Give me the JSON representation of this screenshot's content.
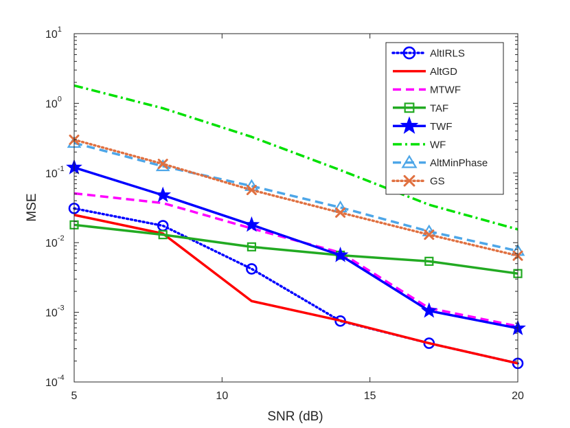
{
  "chart_data": {
    "type": "line",
    "title": "",
    "xlabel": "SNR (dB)",
    "ylabel": "MSE",
    "yscale": "log",
    "xlim": [
      5,
      20
    ],
    "ylim": [
      0.0001,
      10
    ],
    "x_ticks": [
      {
        "value": 5,
        "label": "5"
      },
      {
        "value": 10,
        "label": "10"
      },
      {
        "value": 15,
        "label": "15"
      },
      {
        "value": 20,
        "label": "20"
      }
    ],
    "y_ticks": [
      {
        "value": 0.0001,
        "base": "10",
        "exp": "-4"
      },
      {
        "value": 0.001,
        "base": "10",
        "exp": "-3"
      },
      {
        "value": 0.01,
        "base": "10",
        "exp": "-2"
      },
      {
        "value": 0.1,
        "base": "10",
        "exp": "-1"
      },
      {
        "value": 1,
        "base": "10",
        "exp": "0"
      },
      {
        "value": 10,
        "base": "10",
        "exp": "1"
      }
    ],
    "grid": false,
    "legend_position": "top-right",
    "x": [
      5,
      8,
      11,
      14,
      17,
      20
    ],
    "series": [
      {
        "name": "AltIRLS",
        "color": "#0000ff",
        "line": "dotted",
        "marker": "circle",
        "values": [
          0.031,
          0.0175,
          0.0042,
          0.00075,
          0.00036,
          0.000185
        ]
      },
      {
        "name": "AltGD",
        "color": "#ff0000",
        "line": "solid",
        "marker": "none",
        "values": [
          0.025,
          0.0135,
          0.00145,
          0.00076,
          0.00036,
          0.000185
        ]
      },
      {
        "name": "MTWF",
        "color": "#ff00ff",
        "line": "dashed",
        "marker": "none",
        "values": [
          0.051,
          0.037,
          0.016,
          0.0072,
          0.00115,
          0.00063
        ]
      },
      {
        "name": "TAF",
        "color": "#22aa22",
        "line": "solid",
        "marker": "square",
        "values": [
          0.018,
          0.013,
          0.0087,
          0.0066,
          0.0054,
          0.0036
        ]
      },
      {
        "name": "TWF",
        "color": "#0000ff",
        "line": "solid",
        "marker": "star",
        "values": [
          0.12,
          0.048,
          0.018,
          0.0066,
          0.00105,
          0.00059
        ]
      },
      {
        "name": "WF",
        "color": "#00e000",
        "line": "dashdot",
        "marker": "none",
        "values": [
          1.8,
          0.85,
          0.33,
          0.11,
          0.035,
          0.0155
        ]
      },
      {
        "name": "AltMinPhase",
        "color": "#4da6e8",
        "line": "dashed",
        "marker": "triangle",
        "values": [
          0.27,
          0.125,
          0.065,
          0.032,
          0.0145,
          0.0076
        ]
      },
      {
        "name": "GS",
        "color": "#e07040",
        "line": "dotted",
        "marker": "x",
        "values": [
          0.3,
          0.135,
          0.057,
          0.027,
          0.013,
          0.0065
        ]
      }
    ]
  }
}
